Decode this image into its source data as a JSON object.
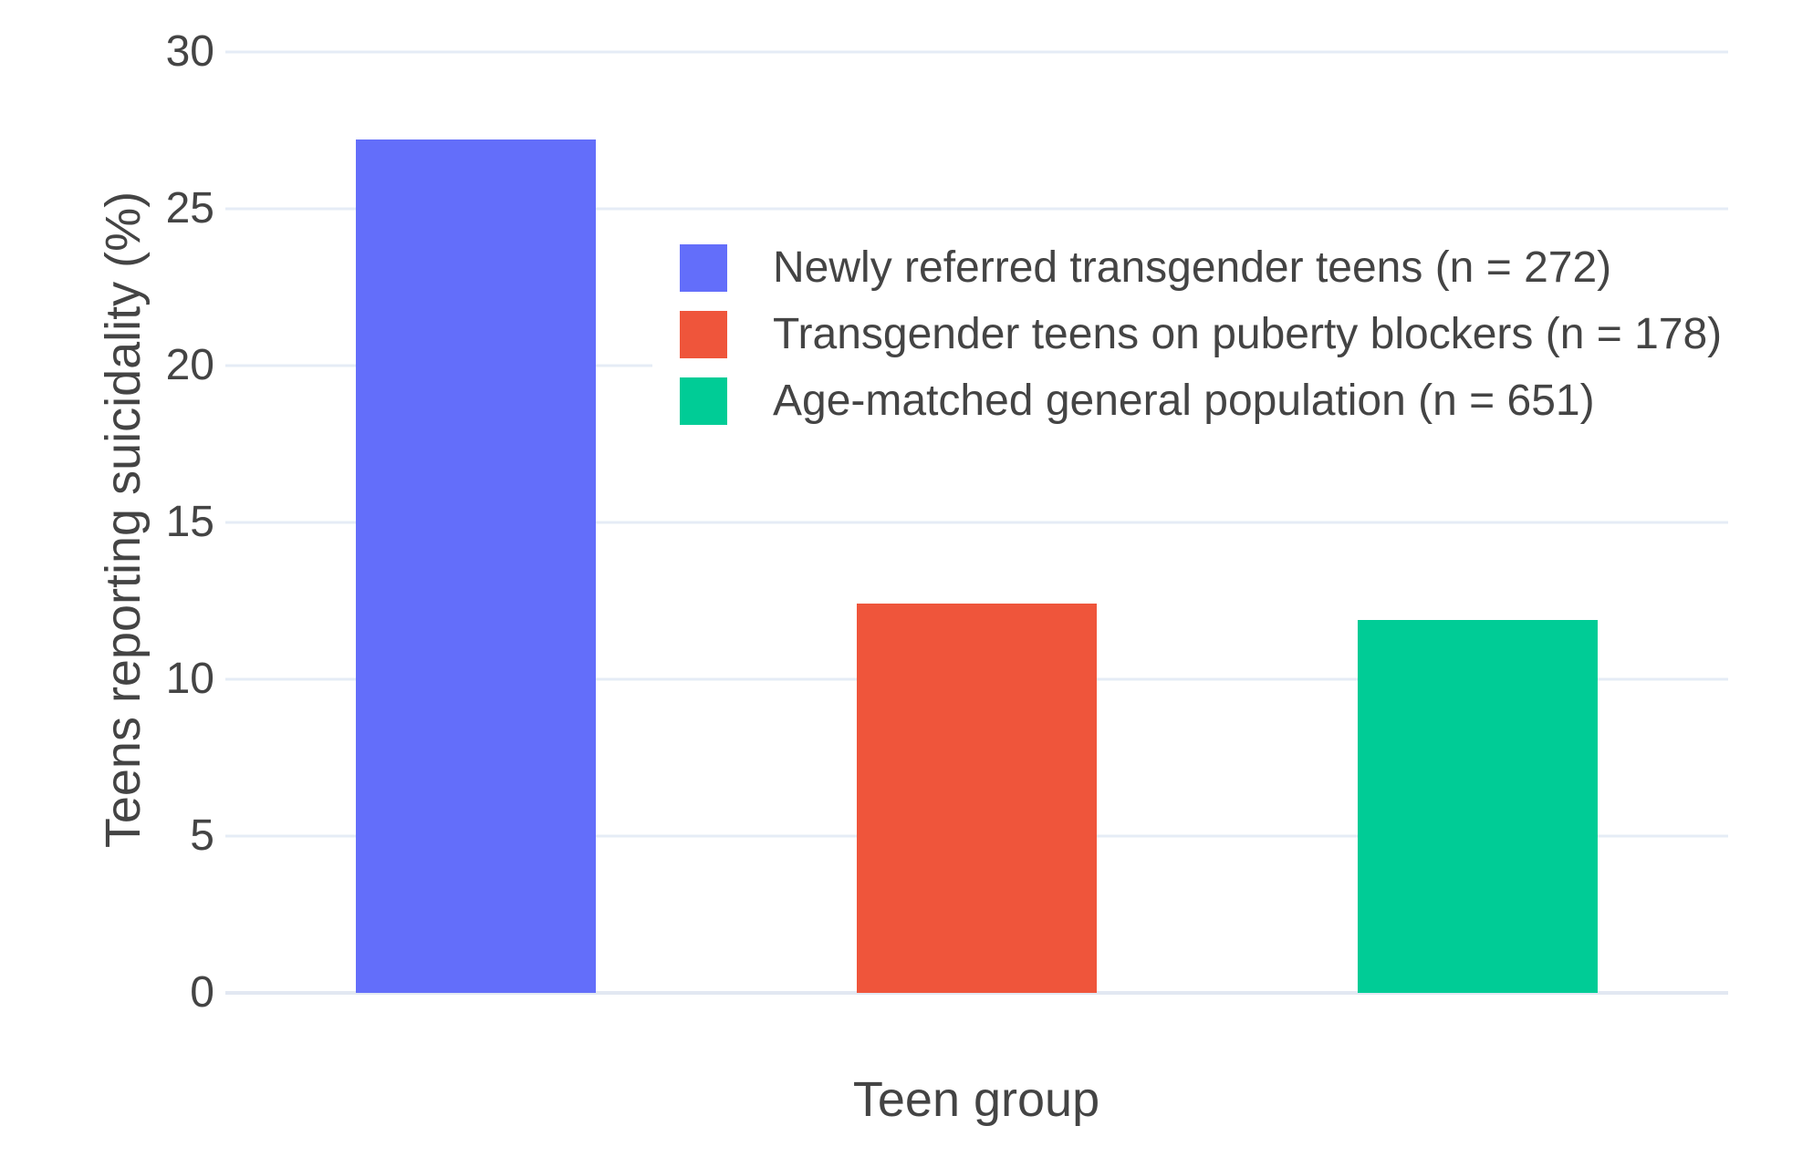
{
  "chart_data": {
    "type": "bar",
    "title": "",
    "xlabel": "Teen group",
    "ylabel": "Teens reporting suicidality (%)",
    "categories": [
      "Newly referred transgender teens",
      "Transgender teens on puberty blockers",
      "Age-matched general population"
    ],
    "series": [
      {
        "name": "Newly referred transgender teens (n = 272)",
        "value": 27.2,
        "color": "#636EFA"
      },
      {
        "name": "Transgender teens on puberty blockers (n = 178)",
        "value": 12.4,
        "color": "#EF553B"
      },
      {
        "name": "Age-matched general population (n = 651)",
        "value": 11.9,
        "color": "#00CC96"
      }
    ],
    "yticks": [
      0,
      5,
      10,
      15,
      20,
      25,
      30
    ],
    "ylim": [
      0,
      30.2
    ],
    "grid": true,
    "legend_position": "inside-top-center",
    "colors": {
      "gridline": "#E5ECF6",
      "zeroline": "#E2E8F2",
      "text": "#444444",
      "background": "#FFFFFF"
    }
  }
}
